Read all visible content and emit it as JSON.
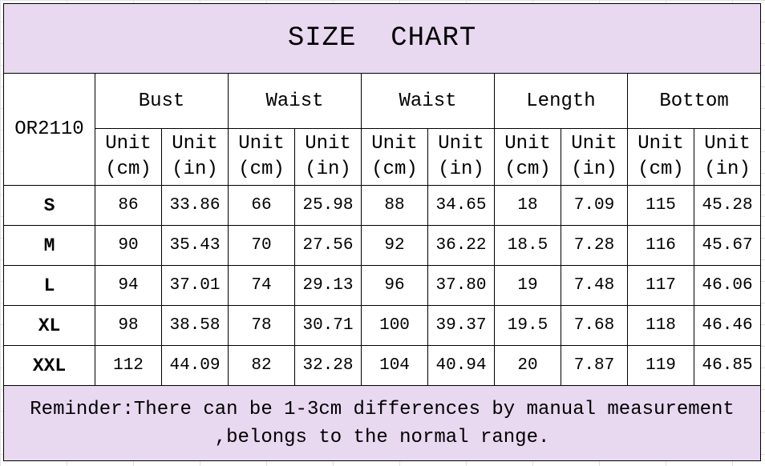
{
  "title": "SIZE  CHART",
  "model_code": "OR2110",
  "groups": [
    "Bust",
    "Waist",
    "Waist",
    "Length",
    "Bottom"
  ],
  "unit_labels": {
    "cm": [
      "Unit",
      "(cm)"
    ],
    "in": [
      "Unit",
      "(in)"
    ]
  },
  "rows": [
    {
      "size": "S",
      "values": [
        "86",
        "33.86",
        "66",
        "25.98",
        "88",
        "34.65",
        "18",
        "7.09",
        "115",
        "45.28"
      ]
    },
    {
      "size": "M",
      "values": [
        "90",
        "35.43",
        "70",
        "27.56",
        "92",
        "36.22",
        "18.5",
        "7.28",
        "116",
        "45.67"
      ]
    },
    {
      "size": "L",
      "values": [
        "94",
        "37.01",
        "74",
        "29.13",
        "96",
        "37.80",
        "19",
        "7.48",
        "117",
        "46.06"
      ]
    },
    {
      "size": "XL",
      "values": [
        "98",
        "38.58",
        "78",
        "30.71",
        "100",
        "39.37",
        "19.5",
        "7.68",
        "118",
        "46.46"
      ]
    },
    {
      "size": "XXL",
      "values": [
        "112",
        "44.09",
        "82",
        "32.28",
        "104",
        "40.94",
        "20",
        "7.87",
        "119",
        "46.85"
      ]
    }
  ],
  "reminder_line1": "Reminder:There can be 1-3cm differences by manual measurement",
  "reminder_line2": ",belongs to the normal range.",
  "colors": {
    "header_bg": "#e8d8f0"
  }
}
